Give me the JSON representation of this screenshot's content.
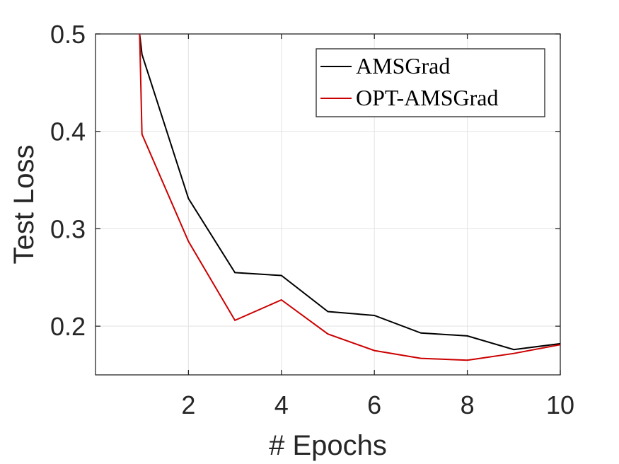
{
  "chart_data": {
    "type": "line",
    "xlabel": "# Epochs",
    "ylabel": "Test Loss",
    "xlim": [
      0,
      10
    ],
    "ylim": [
      0.15,
      0.5
    ],
    "xticks": [
      2,
      4,
      6,
      8,
      10
    ],
    "xtick_labels": [
      "2",
      "4",
      "6",
      "8",
      "10"
    ],
    "yticks": [
      0.2,
      0.3,
      0.4,
      0.5
    ],
    "ytick_labels": [
      "0.2",
      "0.3",
      "0.4",
      "0.5"
    ],
    "grid": true,
    "legend_position": "top-right",
    "series": [
      {
        "name": "AMSGrad",
        "color": "#000000",
        "x": [
          0.95,
          1,
          2,
          3,
          4,
          5,
          6,
          7,
          8,
          9,
          10
        ],
        "y": [
          0.5,
          0.479,
          0.331,
          0.255,
          0.252,
          0.215,
          0.211,
          0.193,
          0.19,
          0.176,
          0.182
        ]
      },
      {
        "name": "OPT-AMSGrad",
        "color": "#cc0000",
        "x": [
          0.95,
          1,
          2,
          3,
          4,
          5,
          6,
          7,
          8,
          9,
          10
        ],
        "y": [
          0.5,
          0.397,
          0.287,
          0.206,
          0.227,
          0.192,
          0.175,
          0.167,
          0.165,
          0.172,
          0.181
        ]
      }
    ]
  }
}
